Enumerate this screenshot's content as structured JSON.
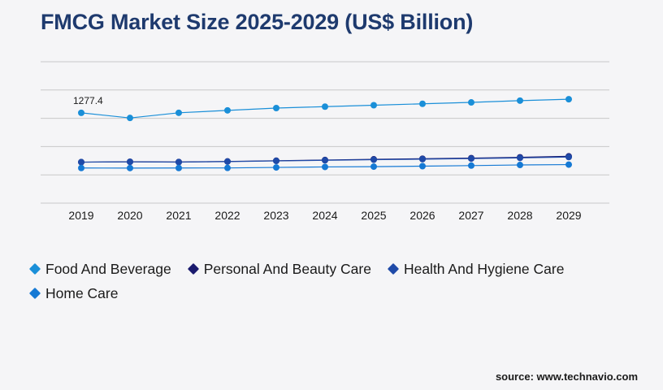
{
  "chart_data": {
    "type": "line",
    "title": "FMCG Market Size 2025-2029 (US$ Billion)",
    "xlabel": "",
    "ylabel": "",
    "categories": [
      "2019",
      "2020",
      "2021",
      "2022",
      "2023",
      "2024",
      "2025",
      "2026",
      "2027",
      "2028",
      "2029"
    ],
    "ylim": [
      0,
      2000
    ],
    "grid": true,
    "legend_position": "bottom-left",
    "series": [
      {
        "name": "Food And Beverage",
        "color": "#1a8fd8",
        "values": [
          1277.4,
          1205,
          1278,
          1312,
          1345,
          1365,
          1385,
          1405,
          1425,
          1450,
          1470
        ]
      },
      {
        "name": "Personal And Beauty Care",
        "color": "#1a1a6e",
        "values": [
          580,
          585,
          582,
          590,
          600,
          610,
          620,
          628,
          637,
          648,
          662
        ]
      },
      {
        "name": "Health And Hygiene Care",
        "color": "#1f4aa8",
        "values": [
          580,
          584,
          580,
          588,
          597,
          606,
          614,
          622,
          630,
          640,
          652
        ]
      },
      {
        "name": "Home Care",
        "color": "#1579d4",
        "values": [
          497,
          496,
          497,
          498,
          505,
          512,
          516,
          523,
          531,
          540,
          545
        ]
      }
    ],
    "data_labels": [
      {
        "series": 0,
        "index": 0,
        "text": "1277.4"
      }
    ]
  },
  "source": "source: www.technavio.com"
}
